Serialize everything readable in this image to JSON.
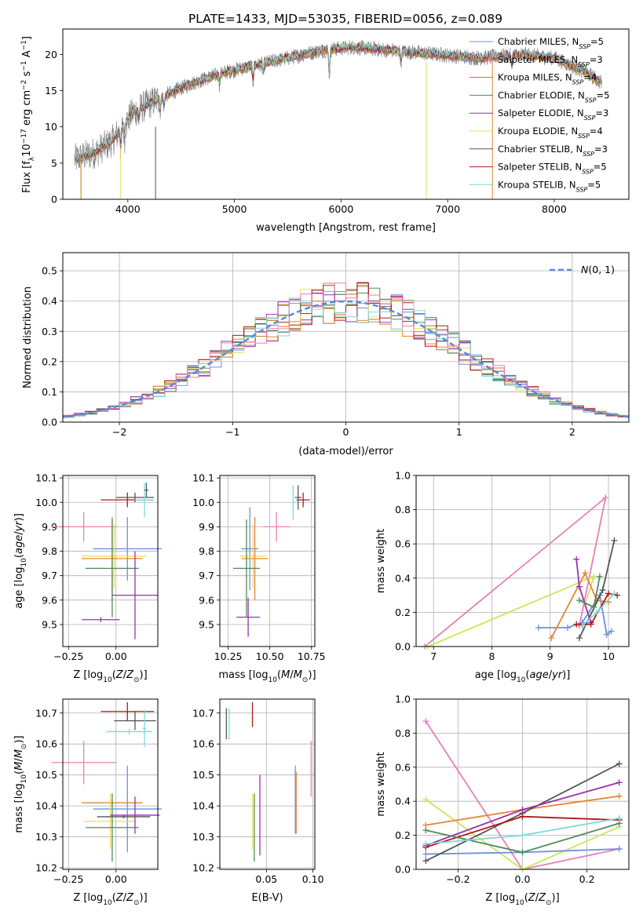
{
  "title": "PLATE=1433, MJD=53035, FIBERID=0056, z=0.089",
  "colors": {
    "Chabrier MILES": "#6f8fe0",
    "Salpeter MILES": "#e8862e",
    "Kroupa MILES": "#c07a10",
    "Chabrier ELODIE": "#4f8a5a",
    "Salpeter ELODIE": "#9b2fb0",
    "Kroupa ELODIE": "#e6e05a",
    "Chabrier STELIB": "#555555",
    "Salpeter STELIB": "#b01818",
    "Kroupa STELIB": "#7fd8d8",
    "pink": "#e77fb8",
    "lime": "#c8e85a",
    "normal_curve": "#5a8ad8"
  },
  "chart_data": [
    {
      "type": "line",
      "name": "spectrum",
      "xlabel": "wavelength [Angstrom, rest frame]",
      "ylabel": "Flux [f_λ10^-17 erg cm^-2 s^-1 A^-1]",
      "xlim": [
        3390,
        8700
      ],
      "ylim": [
        0,
        23.5
      ],
      "xticks": [
        4000,
        5000,
        6000,
        7000,
        8000
      ],
      "yticks": [
        0,
        5,
        10,
        15,
        20
      ],
      "legend_position": "right",
      "legend": [
        {
          "label": "Chabrier MILES, N",
          "sub": "SSP",
          "n": "=5",
          "color": "#6f8fe0"
        },
        {
          "label": "Salpeter MILES, N",
          "sub": "SSP",
          "n": "=3",
          "color": "#e8862e"
        },
        {
          "label": "Kroupa MILES, N",
          "sub": "SSP",
          "n": "=4",
          "color": "#c07a10"
        },
        {
          "label": "Chabrier ELODIE, N",
          "sub": "SSP",
          "n": "=5",
          "color": "#4f8a5a"
        },
        {
          "label": "Salpeter ELODIE, N",
          "sub": "SSP",
          "n": "=3",
          "color": "#9b2fb0"
        },
        {
          "label": "Kroupa ELODIE, N",
          "sub": "SSP",
          "n": "=4",
          "color": "#e6e05a"
        },
        {
          "label": "Chabrier STELIB, N",
          "sub": "SSP",
          "n": "=3",
          "color": "#555555"
        },
        {
          "label": "Salpeter STELIB, N",
          "sub": "SSP",
          "n": "=5",
          "color": "#b01818"
        },
        {
          "label": "Kroupa STELIB, N",
          "sub": "SSP",
          "n": "=5",
          "color": "#7fd8d8"
        }
      ],
      "continuum_x": [
        3500,
        3700,
        3850,
        3950,
        4050,
        4300,
        4600,
        4900,
        5200,
        5500,
        5800,
        6100,
        6500,
        6900,
        7300,
        7700,
        8000,
        8300,
        8450
      ],
      "continuum_y": [
        5.5,
        6.5,
        8,
        10,
        12,
        14,
        16,
        17.5,
        18.5,
        19.5,
        20.5,
        21,
        20.5,
        20,
        19.5,
        20,
        19.5,
        17.5,
        16
      ]
    },
    {
      "type": "histogram",
      "name": "residuals",
      "xlabel": "(data-model)/error",
      "ylabel": "Normed distribution",
      "xlim": [
        -2.5,
        2.5
      ],
      "ylim": [
        0,
        0.56
      ],
      "xticks": [
        -2,
        -1,
        0,
        1,
        2
      ],
      "yticks": [
        0.0,
        0.1,
        0.2,
        0.3,
        0.4,
        0.5
      ],
      "legend": "N(0,1)",
      "bin_width": 0.1
    },
    {
      "type": "errorbar",
      "name": "age-vs-Z",
      "xlabel": "Z [log10(Z/Z⊙)]",
      "ylabel": "age [log10(age/yr)]",
      "xlim": [
        -0.28,
        0.22
      ],
      "ylim": [
        9.41,
        10.11
      ],
      "xticks": [
        -0.25,
        0.0
      ],
      "yticks": [
        9.5,
        9.6,
        9.7,
        9.8,
        9.9,
        10.0,
        10.1
      ],
      "points": [
        {
          "x": 0.06,
          "xerr": 0.14,
          "y": 10.01,
          "yerr": 0.03,
          "color": "#b01818"
        },
        {
          "x": 0.1,
          "xerr": 0.1,
          "y": 10.02,
          "yerr": 0.02,
          "color": "#555555"
        },
        {
          "x": 0.15,
          "xerr": 0.05,
          "y": 10.01,
          "yerr": 0.07,
          "color": "#7fd8d8"
        },
        {
          "x": 0.16,
          "xerr": 0.01,
          "y": 10.05,
          "yerr": 0.03,
          "color": "#555555"
        },
        {
          "x": -0.17,
          "xerr": 0.17,
          "y": 9.9,
          "yerr": 0.06,
          "color": "#e77fb8"
        },
        {
          "x": 0.06,
          "xerr": 0.18,
          "y": 9.81,
          "yerr": 0.13,
          "color": "#6f8fe0"
        },
        {
          "x": -0.01,
          "xerr": 0.17,
          "y": 9.78,
          "yerr": 0.13,
          "color": "#e6e05a"
        },
        {
          "x": -0.02,
          "xerr": 0.16,
          "y": 9.77,
          "yerr": 0.17,
          "color": "#e8862e"
        },
        {
          "x": -0.02,
          "xerr": 0.14,
          "y": 9.73,
          "yerr": 0.2,
          "color": "#4f8a5a"
        },
        {
          "x": 0.1,
          "xerr": 0.12,
          "y": 9.62,
          "yerr": 0.18,
          "color": "#9b2fb0"
        },
        {
          "x": -0.08,
          "xerr": 0.1,
          "y": 9.52,
          "yerr": 0.01,
          "color": "#9b2fb0"
        }
      ]
    },
    {
      "type": "errorbar",
      "name": "age-vs-mass",
      "xlabel": "mass [log10(M/M⊙)]",
      "ylabel": "",
      "xlim": [
        10.2,
        10.77
      ],
      "ylim": [
        9.41,
        10.11
      ],
      "xticks": [
        10.25,
        10.5,
        10.75
      ],
      "yticks": [
        9.5,
        9.6,
        9.7,
        9.8,
        9.9,
        10.0,
        10.1
      ],
      "points": [
        {
          "x": 10.7,
          "xerr": 0.04,
          "y": 10.01,
          "yerr": 0.03,
          "color": "#b01818"
        },
        {
          "x": 10.67,
          "xerr": 0.02,
          "y": 10.02,
          "yerr": 0.05,
          "color": "#555555"
        },
        {
          "x": 10.64,
          "xerr": 0.01,
          "y": 10.0,
          "yerr": 0.07,
          "color": "#7fd8d8"
        },
        {
          "x": 10.54,
          "xerr": 0.08,
          "y": 9.9,
          "yerr": 0.06,
          "color": "#e77fb8"
        },
        {
          "x": 10.38,
          "xerr": 0.05,
          "y": 9.81,
          "yerr": 0.17,
          "color": "#6f8fe0"
        },
        {
          "x": 10.4,
          "xerr": 0.08,
          "y": 9.78,
          "yerr": 0.13,
          "color": "#e6e05a"
        },
        {
          "x": 10.41,
          "xerr": 0.08,
          "y": 9.77,
          "yerr": 0.17,
          "color": "#e8862e"
        },
        {
          "x": 10.36,
          "xerr": 0.08,
          "y": 9.73,
          "yerr": 0.2,
          "color": "#4f8a5a"
        },
        {
          "x": 10.37,
          "xerr": 0.07,
          "y": 9.53,
          "yerr": 0.08,
          "color": "#9b2fb0"
        }
      ]
    },
    {
      "type": "line",
      "name": "massweight-vs-age",
      "xlabel": "age [log10(age/yr)]",
      "ylabel": "mass weight",
      "xlim": [
        6.7,
        10.35
      ],
      "ylim": [
        0,
        1.0
      ],
      "xticks": [
        7,
        8,
        9,
        10
      ],
      "yticks": [
        0.0,
        0.2,
        0.4,
        0.6,
        0.8,
        1.0
      ],
      "series": [
        {
          "color": "#e77fb8",
          "x": [
            6.85,
            9.95,
            9.5,
            9.55
          ],
          "y": [
            0.0,
            0.87,
            0.12,
            0.12
          ]
        },
        {
          "color": "#c8e85a",
          "x": [
            6.9,
            9.75,
            9.6
          ],
          "y": [
            0.0,
            0.41,
            0.25
          ]
        },
        {
          "color": "#6f8fe0",
          "x": [
            8.8,
            9.3,
            9.55,
            9.85,
            9.97,
            10.05
          ],
          "y": [
            0.11,
            0.11,
            0.14,
            0.3,
            0.07,
            0.09
          ]
        },
        {
          "color": "#e8862e",
          "x": [
            9.02,
            9.6,
            9.8,
            10.0
          ],
          "y": [
            0.05,
            0.43,
            0.27,
            0.26
          ]
        },
        {
          "color": "#555555",
          "x": [
            9.5,
            9.9,
            10.1
          ],
          "y": [
            0.05,
            0.33,
            0.62
          ]
        },
        {
          "color": "#9b2fb0",
          "x": [
            9.45,
            9.5,
            9.7
          ],
          "y": [
            0.51,
            0.35,
            0.14
          ]
        },
        {
          "color": "#b01818",
          "x": [
            9.45,
            9.7,
            10.0,
            10.15
          ],
          "y": [
            0.13,
            0.13,
            0.31,
            0.3
          ]
        },
        {
          "color": "#4f8a5a",
          "x": [
            9.5,
            9.75,
            9.85
          ],
          "y": [
            0.27,
            0.23,
            0.41
          ]
        },
        {
          "color": "#7fd8d8",
          "x": [
            9.55,
            9.8,
            10.1
          ],
          "y": [
            0.12,
            0.2,
            0.31
          ]
        }
      ]
    },
    {
      "type": "errorbar",
      "name": "mass-vs-Z",
      "xlabel": "Z [log10(Z/Z⊙)]",
      "ylabel": "mass [log10(M/M⊙)]",
      "xlim": [
        -0.28,
        0.22
      ],
      "ylim": [
        10.195,
        10.745
      ],
      "xticks": [
        -0.25,
        0.0
      ],
      "yticks": [
        10.2,
        10.3,
        10.4,
        10.5,
        10.6,
        10.7
      ],
      "points": [
        {
          "x": 0.06,
          "xerr": 0.14,
          "y": 10.705,
          "yerr": 0.03,
          "color": "#b01818"
        },
        {
          "x": 0.1,
          "xerr": 0.11,
          "y": 10.675,
          "yerr": 0.03,
          "color": "#555555"
        },
        {
          "x": 0.15,
          "xerr": 0.01,
          "y": 10.65,
          "yerr": 0.06,
          "color": "#7fd8d8"
        },
        {
          "x": 0.07,
          "xerr": 0.12,
          "y": 10.64,
          "yerr": 0.01,
          "color": "#7fd8d8"
        },
        {
          "x": -0.17,
          "xerr": 0.17,
          "y": 10.54,
          "yerr": 0.07,
          "color": "#e77fb8"
        },
        {
          "x": 0.06,
          "xerr": 0.18,
          "y": 10.39,
          "yerr": 0.14,
          "color": "#6f8fe0"
        },
        {
          "x": -0.02,
          "xerr": 0.16,
          "y": 10.41,
          "yerr": 0.01,
          "color": "#e8862e"
        },
        {
          "x": -0.03,
          "xerr": 0.14,
          "y": 10.35,
          "yerr": 0.09,
          "color": "#e6e05a"
        },
        {
          "x": -0.02,
          "xerr": 0.14,
          "y": 10.33,
          "yerr": 0.11,
          "color": "#4f8a5a"
        },
        {
          "x": 0.1,
          "xerr": 0.13,
          "y": 10.37,
          "yerr": 0.06,
          "color": "#9b2fb0"
        },
        {
          "x": 0.04,
          "xerr": 0.14,
          "y": 10.365,
          "yerr": 0.005,
          "color": "#555555"
        }
      ]
    },
    {
      "type": "errorbar",
      "name": "mass-vs-ebv",
      "xlabel": "E(B-V)",
      "ylabel": "",
      "xlim": [
        0.0,
        0.102
      ],
      "ylim": [
        10.195,
        10.745
      ],
      "xticks": [
        0.05,
        0.1
      ],
      "yticks": [
        10.2,
        10.3,
        10.4,
        10.5,
        10.6,
        10.7
      ],
      "points": [
        {
          "x": 0.007,
          "y": 10.665,
          "yerr": 0.05,
          "color": "#555555"
        },
        {
          "x": 0.01,
          "y": 10.665,
          "yerr": 0.05,
          "color": "#7fd8d8"
        },
        {
          "x": 0.035,
          "y": 10.695,
          "yerr": 0.04,
          "color": "#b01818"
        },
        {
          "x": 0.098,
          "y": 10.52,
          "yerr": 0.09,
          "color": "#e77fb8"
        },
        {
          "x": 0.081,
          "y": 10.42,
          "yerr": 0.11,
          "color": "#6f8fe0"
        },
        {
          "x": 0.082,
          "y": 10.41,
          "yerr": 0.1,
          "color": "#e8862e"
        },
        {
          "x": 0.035,
          "y": 10.35,
          "yerr": 0.09,
          "color": "#e6e05a"
        },
        {
          "x": 0.037,
          "y": 10.33,
          "yerr": 0.11,
          "color": "#4f8a5a"
        },
        {
          "x": 0.043,
          "y": 10.37,
          "yerr": 0.13,
          "color": "#9b2fb0"
        }
      ]
    },
    {
      "type": "line",
      "name": "massweight-vs-Z",
      "xlabel": "Z [log10(Z/Z⊙)]",
      "ylabel": "mass weight",
      "xlim": [
        -0.33,
        0.33
      ],
      "ylim": [
        0,
        1.0
      ],
      "xticks": [
        -0.2,
        0.0,
        0.2
      ],
      "yticks": [
        0.0,
        0.2,
        0.4,
        0.6,
        0.8,
        1.0
      ],
      "series": [
        {
          "color": "#e77fb8",
          "x": [
            -0.3,
            0.0,
            0.3
          ],
          "y": [
            0.87,
            0.0,
            0.12
          ]
        },
        {
          "color": "#c8e85a",
          "x": [
            -0.3,
            0.0,
            0.3
          ],
          "y": [
            0.41,
            0.0,
            0.25
          ]
        },
        {
          "color": "#6f8fe0",
          "x": [
            -0.3,
            0.0,
            0.3
          ],
          "y": [
            0.09,
            0.1,
            0.12
          ]
        },
        {
          "color": "#e8862e",
          "x": [
            -0.3,
            0.0,
            0.3
          ],
          "y": [
            0.26,
            0.35,
            0.43
          ]
        },
        {
          "color": "#555555",
          "x": [
            -0.3,
            0.0,
            0.3
          ],
          "y": [
            0.05,
            0.33,
            0.62
          ]
        },
        {
          "color": "#9b2fb0",
          "x": [
            -0.3,
            0.0,
            0.3
          ],
          "y": [
            0.14,
            0.35,
            0.51
          ]
        },
        {
          "color": "#b01818",
          "x": [
            -0.3,
            0.0,
            0.3
          ],
          "y": [
            0.13,
            0.31,
            0.29
          ]
        },
        {
          "color": "#4f8a5a",
          "x": [
            -0.3,
            0.0,
            0.3
          ],
          "y": [
            0.23,
            0.1,
            0.27
          ]
        },
        {
          "color": "#7fd8d8",
          "x": [
            -0.3,
            0.0,
            0.3
          ],
          "y": [
            0.15,
            0.2,
            0.3
          ]
        }
      ]
    }
  ]
}
